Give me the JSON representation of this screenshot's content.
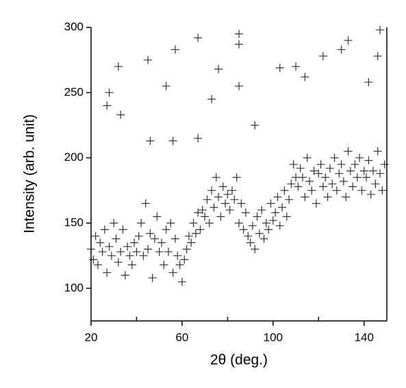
{
  "chart_data": {
    "type": "scatter",
    "x_label": "2θ (deg.)",
    "y_label": "Intensity (arb. unit)",
    "xlim": [
      20,
      150
    ],
    "ylim": [
      75,
      300
    ],
    "xticks": [
      20,
      60,
      100,
      140
    ],
    "xminorticks": [
      40,
      80,
      120
    ],
    "yticks": [
      100,
      150,
      200,
      250,
      300
    ],
    "color": "#333333",
    "x": [
      20,
      21,
      22,
      23,
      24,
      25,
      26,
      27,
      28,
      29,
      30,
      31,
      32,
      33,
      34,
      35,
      36,
      37,
      38,
      39,
      40,
      41,
      42,
      43,
      44,
      45,
      46,
      47,
      48,
      49,
      50,
      51,
      52,
      53,
      54,
      55,
      56,
      57,
      58,
      59,
      60,
      61,
      62,
      63,
      64,
      65,
      66,
      67,
      68,
      69,
      70,
      71,
      72,
      73,
      74,
      75,
      76,
      77,
      78,
      79,
      80,
      81,
      82,
      83,
      84,
      85,
      86,
      87,
      88,
      89,
      90,
      91,
      92,
      93,
      94,
      95,
      96,
      97,
      98,
      99,
      100,
      101,
      102,
      103,
      104,
      105,
      106,
      107,
      108,
      109,
      110,
      111,
      112,
      113,
      114,
      115,
      116,
      117,
      118,
      119,
      120,
      121,
      122,
      123,
      124,
      125,
      126,
      127,
      128,
      129,
      130,
      131,
      132,
      133,
      134,
      135,
      136,
      137,
      138,
      139,
      140,
      141,
      142,
      143,
      144,
      145,
      146,
      147,
      148,
      149,
      27,
      28,
      32,
      33,
      45,
      53,
      57,
      67,
      73,
      76,
      85,
      85,
      85,
      92,
      103,
      110,
      114,
      122,
      130,
      133,
      142,
      146,
      147,
      46,
      56,
      67
    ],
    "y": [
      130,
      122,
      140,
      118,
      135,
      128,
      145,
      112,
      132,
      125,
      150,
      138,
      120,
      128,
      145,
      110,
      132,
      125,
      118,
      135,
      128,
      140,
      150,
      125,
      165,
      130,
      142,
      108,
      138,
      155,
      128,
      135,
      118,
      145,
      128,
      150,
      112,
      138,
      125,
      118,
      105,
      122,
      130,
      140,
      135,
      150,
      142,
      158,
      145,
      160,
      155,
      168,
      150,
      175,
      162,
      185,
      170,
      155,
      178,
      165,
      172,
      160,
      175,
      168,
      185,
      150,
      165,
      145,
      158,
      140,
      135,
      148,
      130,
      155,
      142,
      160,
      138,
      150,
      145,
      165,
      152,
      158,
      170,
      148,
      162,
      175,
      155,
      168,
      180,
      195,
      185,
      178,
      192,
      185,
      170,
      200,
      182,
      175,
      190,
      165,
      188,
      195,
      178,
      185,
      170,
      192,
      180,
      200,
      175,
      188,
      195,
      182,
      170,
      205,
      190,
      178,
      195,
      185,
      200,
      175,
      190,
      185,
      198,
      172,
      190,
      180,
      205,
      188,
      175,
      195,
      240,
      250,
      270,
      233,
      275,
      255,
      283,
      292,
      245,
      268,
      295,
      287,
      255,
      225,
      269,
      270,
      262,
      278,
      283,
      290,
      258,
      278,
      298,
      213,
      213,
      215
    ]
  }
}
